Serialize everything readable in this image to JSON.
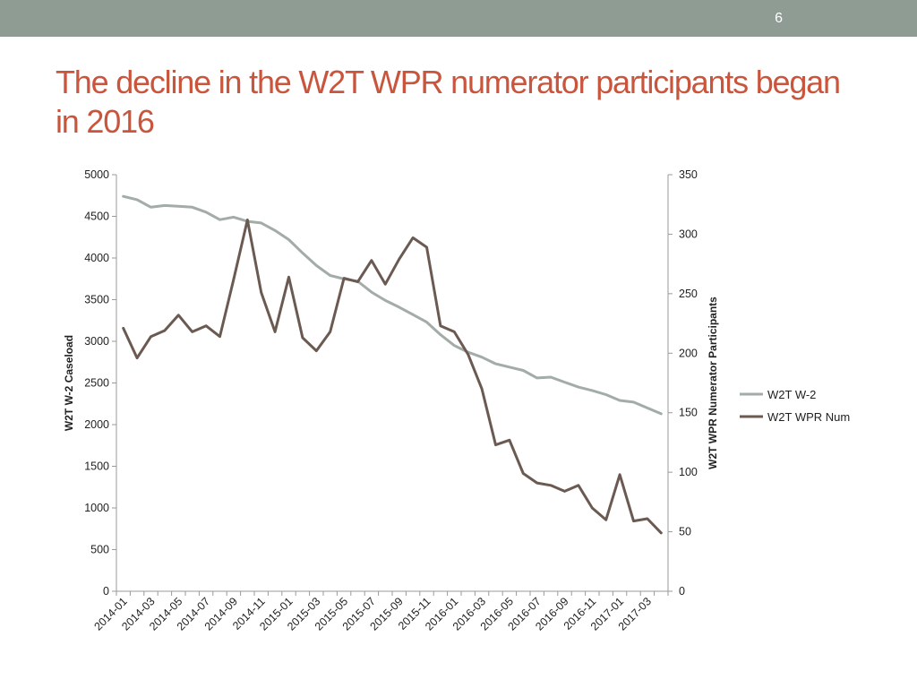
{
  "slide": {
    "number": "6"
  },
  "title": "The decline in the W2T WPR numerator participants began in 2016",
  "colors": {
    "header_bar": "#8e9c94",
    "title": "#c9553d"
  },
  "chart_data": {
    "type": "line",
    "x": [
      "2014-01",
      "2014-02",
      "2014-03",
      "2014-04",
      "2014-05",
      "2014-06",
      "2014-07",
      "2014-08",
      "2014-09",
      "2014-10",
      "2014-11",
      "2014-12",
      "2015-01",
      "2015-02",
      "2015-03",
      "2015-04",
      "2015-05",
      "2015-06",
      "2015-07",
      "2015-08",
      "2015-09",
      "2015-10",
      "2015-11",
      "2015-12",
      "2016-01",
      "2016-02",
      "2016-03",
      "2016-04",
      "2016-05",
      "2016-06",
      "2016-07",
      "2016-08",
      "2016-09",
      "2016-10",
      "2016-11",
      "2016-12",
      "2017-01",
      "2017-02",
      "2017-03",
      "2017-04"
    ],
    "x_tick_labels": [
      "2014-01",
      "2014-03",
      "2014-05",
      "2014-07",
      "2014-09",
      "2014-11",
      "2015-01",
      "2015-03",
      "2015-05",
      "2015-07",
      "2015-09",
      "2015-11",
      "2016-01",
      "2016-03",
      "2016-05",
      "2016-07",
      "2016-09",
      "2016-11",
      "2017-01",
      "2017-03"
    ],
    "y_left": {
      "title": "W2T W-2 Caseload",
      "range": [
        0,
        5000
      ],
      "ticks": [
        "0",
        "500",
        "1000",
        "1500",
        "2000",
        "2500",
        "3000",
        "3500",
        "4000",
        "4500",
        "5000"
      ]
    },
    "y_right": {
      "title": "W2T WPR Numerator Participants",
      "range": [
        0,
        350
      ],
      "ticks": [
        "0",
        "50",
        "100",
        "150",
        "200",
        "250",
        "300",
        "350"
      ]
    },
    "series": [
      {
        "name": "W2T W-2",
        "axis": "left",
        "color": "#a3aca7",
        "values": [
          4740,
          4700,
          4610,
          4630,
          4620,
          4610,
          4550,
          4460,
          4490,
          4440,
          4420,
          4330,
          4220,
          4060,
          3910,
          3790,
          3750,
          3720,
          3590,
          3490,
          3410,
          3320,
          3230,
          3080,
          2950,
          2870,
          2810,
          2730,
          2690,
          2650,
          2560,
          2570,
          2510,
          2450,
          2410,
          2360,
          2290,
          2270,
          2200,
          2130
        ]
      },
      {
        "name": "W2T WPR Num",
        "axis": "right",
        "color": "#6b5a52",
        "values": [
          221,
          196,
          214,
          219,
          232,
          218,
          223,
          214,
          262,
          312,
          251,
          218,
          264,
          213,
          202,
          218,
          263,
          260,
          278,
          258,
          279,
          297,
          289,
          223,
          218,
          199,
          170,
          123,
          127,
          99,
          91,
          89,
          84,
          89,
          70,
          60,
          98,
          59,
          61,
          49
        ]
      }
    ],
    "legend_position": "right",
    "grid": false
  }
}
